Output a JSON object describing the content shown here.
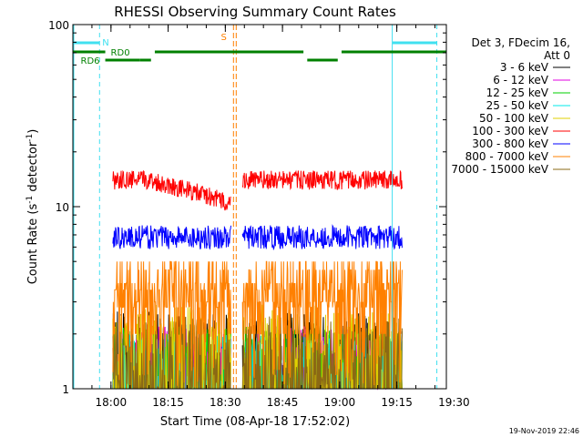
{
  "chart_data": {
    "type": "line",
    "title": "RHESSI Observing Summary Count Rates",
    "xlabel": "Start Time (08-Apr-18 17:52:02)",
    "ylabel_main": "Count Rate (s",
    "ylabel_sup1": "-1",
    "ylabel_mid": " detector",
    "ylabel_sup2": "-1",
    "ylabel_end": ")",
    "x_range_min": [
      -2,
      96
    ],
    "y_scale": "log",
    "ylim": [
      1,
      100
    ],
    "x_ticks": [
      {
        "min": 8,
        "label": "18:00"
      },
      {
        "min": 23,
        "label": "18:15"
      },
      {
        "min": 38,
        "label": "18:30"
      },
      {
        "min": 53,
        "label": "18:45"
      },
      {
        "min": 68,
        "label": "19:00"
      },
      {
        "min": 83,
        "label": "19:15"
      },
      {
        "min": 98,
        "label": "19:30"
      }
    ],
    "y_ticks": [
      {
        "value": 1,
        "label": "1"
      },
      {
        "value": 10,
        "label": "10"
      },
      {
        "value": 100,
        "label": "100"
      }
    ],
    "legend_header_1": "Det 3, FDecim 16,",
    "legend_header_2": "Att 0",
    "legend_position": "right",
    "series": [
      {
        "name": "3 - 6 keV",
        "color": "#000000",
        "level": 1.4,
        "noise": 0.6
      },
      {
        "name": "6 - 12 keV",
        "color": "#e000e0",
        "level": 1.2,
        "noise": 0.4
      },
      {
        "name": "12 - 25 keV",
        "color": "#00d000",
        "level": 1.2,
        "noise": 0.4
      },
      {
        "name": "25 - 50 keV",
        "color": "#00e8e8",
        "level": 1.1,
        "noise": 0.3
      },
      {
        "name": "50 - 100 keV",
        "color": "#e0d000",
        "level": 1.6,
        "noise": 0.6
      },
      {
        "name": "100 - 300 keV",
        "color": "#ff0000",
        "level": 14,
        "noise": 0.12
      },
      {
        "name": "300 - 800 keV",
        "color": "#0000ff",
        "level": 6.8,
        "noise": 0.15
      },
      {
        "name": "800 - 7000 keV",
        "color": "#ff8000",
        "level": 3.8,
        "noise": 0.25
      },
      {
        "name": "7000 - 15000 keV",
        "color": "#8b6914",
        "level": 1.5,
        "noise": 0.4
      }
    ],
    "data_segments_min": [
      [
        8.5,
        39.5
      ],
      [
        42.5,
        84.5
      ]
    ],
    "annotations": {
      "night_boundaries_min": [
        5.0,
        93.5
      ],
      "saa_line_min": 40.5,
      "saa_label": "S",
      "night_label": "N",
      "rd0_label": "RD0",
      "rd6_label": "RD6"
    }
  },
  "footer": {
    "timestamp": "19-Nov-2019 22:46"
  }
}
